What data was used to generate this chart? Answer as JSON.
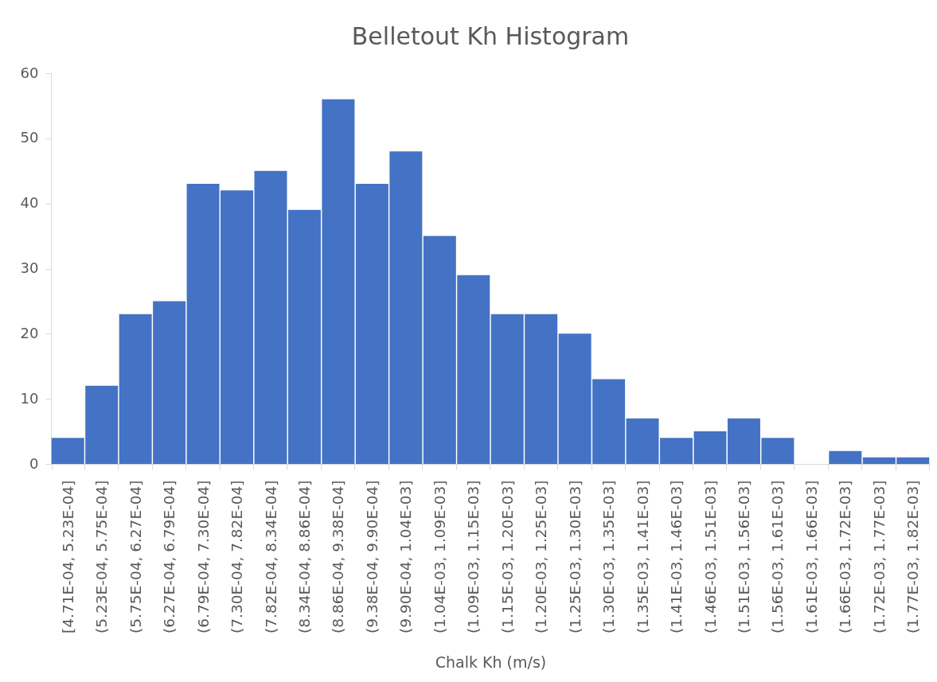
{
  "chart_data": {
    "type": "bar",
    "title": "Belletout Kh Histogram",
    "xlabel": "Chalk Kh (m/s)",
    "categories": [
      "[4.71E-04, 5.23E-04]",
      "(5.23E-04, 5.75E-04]",
      "(5.75E-04, 6.27E-04]",
      "(6.27E-04, 6.79E-04]",
      "(6.79E-04, 7.30E-04]",
      "(7.30E-04, 7.82E-04]",
      "(7.82E-04, 8.34E-04]",
      "(8.34E-04, 8.86E-04]",
      "(8.86E-04, 9.38E-04]",
      "(9.38E-04, 9.90E-04]",
      "(9.90E-04, 1.04E-03]",
      "(1.04E-03, 1.09E-03]",
      "(1.09E-03, 1.15E-03]",
      "(1.15E-03, 1.20E-03]",
      "(1.20E-03, 1.25E-03]",
      "(1.25E-03, 1.30E-03]",
      "(1.30E-03, 1.35E-03]",
      "(1.35E-03, 1.41E-03]",
      "(1.41E-03, 1.46E-03]",
      "(1.46E-03, 1.51E-03]",
      "(1.51E-03, 1.56E-03]",
      "(1.56E-03, 1.61E-03]",
      "(1.61E-03, 1.66E-03]",
      "(1.66E-03, 1.72E-03]",
      "(1.72E-03, 1.77E-03]",
      "(1.77E-03, 1.82E-03]"
    ],
    "values": [
      4,
      12,
      23,
      25,
      43,
      42,
      45,
      39,
      56,
      43,
      48,
      35,
      29,
      23,
      23,
      20,
      13,
      7,
      4,
      5,
      7,
      4,
      0,
      2,
      1,
      1
    ],
    "color": "#4472c4",
    "ylim": [
      0,
      60
    ],
    "yticks": [
      0,
      10,
      20,
      30,
      40,
      50,
      60
    ]
  }
}
